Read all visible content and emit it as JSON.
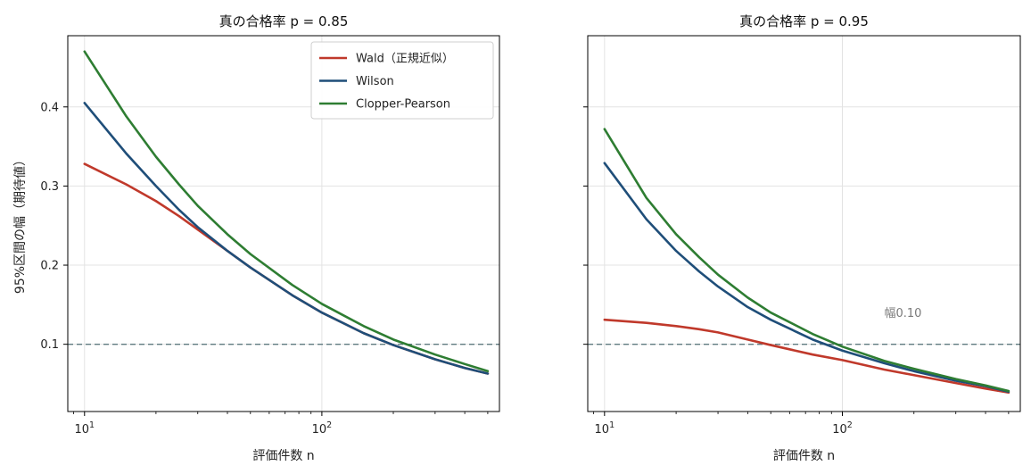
{
  "chart_data": [
    {
      "type": "line",
      "title": "真の合格率 p = 0.85",
      "xlabel": "評価件数 n",
      "ylabel": "95%区間の幅（期待値）",
      "xscale": "log",
      "xlim": [
        8.5,
        560
      ],
      "ylim": [
        0.015,
        0.49
      ],
      "xticks": [
        {
          "value": 10,
          "label": "10^1"
        },
        {
          "value": 100,
          "label": "10^2"
        }
      ],
      "yticks": [
        {
          "value": 0.1,
          "label": "0.1"
        },
        {
          "value": 0.2,
          "label": "0.2"
        },
        {
          "value": 0.3,
          "label": "0.3"
        },
        {
          "value": 0.4,
          "label": "0.4"
        }
      ],
      "grid": true,
      "legend": "top-right",
      "reference_line": {
        "y": 0.1,
        "style": "dashed",
        "color": "#5f7a80"
      },
      "x": [
        10,
        15,
        20,
        25,
        30,
        40,
        50,
        75,
        100,
        150,
        200,
        300,
        400,
        500
      ],
      "series": [
        {
          "name": "Wald（正規近似）",
          "color": "#c0392b",
          "values": [
            0.328,
            0.302,
            0.281,
            0.262,
            0.245,
            0.218,
            0.197,
            0.162,
            0.14,
            0.114,
            0.099,
            0.081,
            0.07,
            0.063
          ]
        },
        {
          "name": "Wilson",
          "color": "#1f4e79",
          "values": [
            0.405,
            0.341,
            0.3,
            0.27,
            0.248,
            0.218,
            0.197,
            0.162,
            0.14,
            0.114,
            0.099,
            0.081,
            0.07,
            0.063
          ]
        },
        {
          "name": "Clopper-Pearson",
          "color": "#2e7d32",
          "values": [
            0.47,
            0.388,
            0.337,
            0.302,
            0.275,
            0.239,
            0.214,
            0.175,
            0.151,
            0.123,
            0.106,
            0.087,
            0.075,
            0.066
          ]
        }
      ]
    },
    {
      "type": "line",
      "title": "真の合格率 p = 0.95",
      "xlabel": "評価件数 n",
      "ylabel": "",
      "xscale": "log",
      "xlim": [
        8.5,
        560
      ],
      "ylim": [
        0.015,
        0.49
      ],
      "xticks": [
        {
          "value": 10,
          "label": "10^1"
        },
        {
          "value": 100,
          "label": "10^2"
        }
      ],
      "yticks": [
        {
          "value": 0.1,
          "label": ""
        },
        {
          "value": 0.2,
          "label": ""
        },
        {
          "value": 0.3,
          "label": ""
        },
        {
          "value": 0.4,
          "label": ""
        }
      ],
      "grid": true,
      "legend": "none",
      "reference_line": {
        "y": 0.1,
        "style": "dashed",
        "color": "#5f7a80"
      },
      "annotation": {
        "text": "幅0.10",
        "x": 150,
        "y": 0.14
      },
      "x": [
        10,
        15,
        20,
        25,
        30,
        40,
        50,
        75,
        100,
        150,
        200,
        300,
        400,
        500
      ],
      "series": [
        {
          "name": "Wald（正規近似）",
          "color": "#c0392b",
          "values": [
            0.131,
            0.127,
            0.123,
            0.119,
            0.115,
            0.106,
            0.099,
            0.087,
            0.08,
            0.068,
            0.061,
            0.051,
            0.044,
            0.039
          ]
        },
        {
          "name": "Wilson",
          "color": "#1f4e79",
          "values": [
            0.329,
            0.258,
            0.218,
            0.192,
            0.173,
            0.147,
            0.131,
            0.106,
            0.092,
            0.076,
            0.066,
            0.054,
            0.047,
            0.04
          ]
        },
        {
          "name": "Clopper-Pearson",
          "color": "#2e7d32",
          "values": [
            0.372,
            0.285,
            0.239,
            0.21,
            0.188,
            0.159,
            0.14,
            0.113,
            0.097,
            0.079,
            0.069,
            0.056,
            0.048,
            0.041
          ]
        }
      ]
    }
  ]
}
